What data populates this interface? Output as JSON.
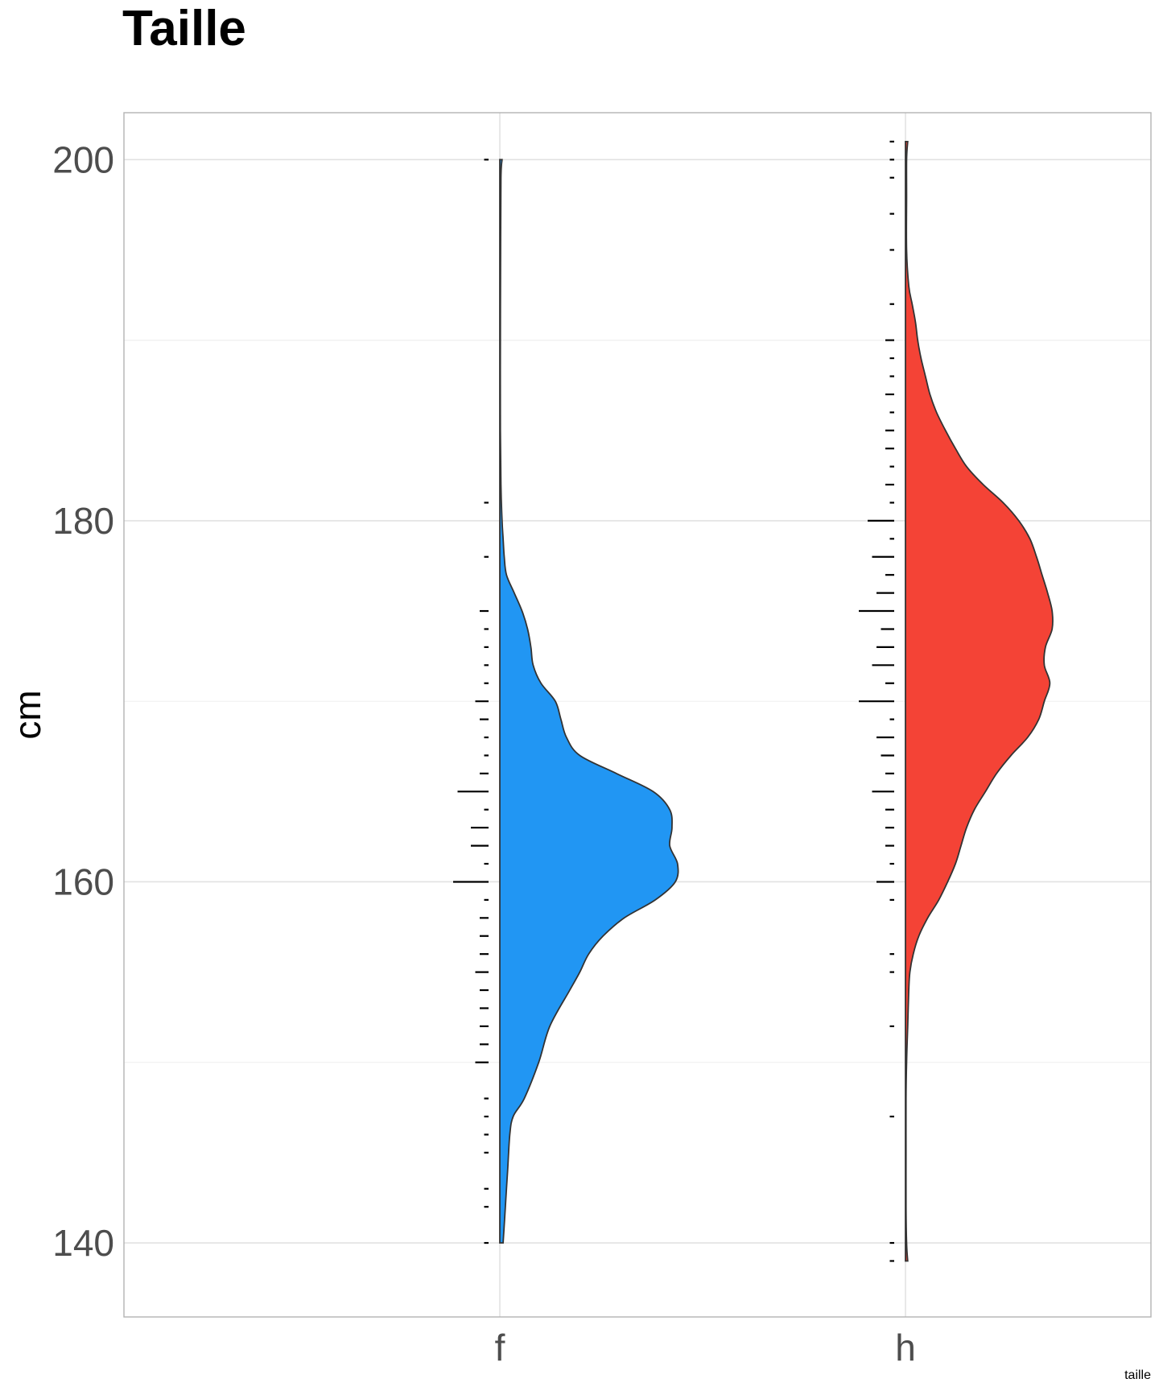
{
  "chart_data": {
    "type": "violin",
    "title": "Taille",
    "xlabel": "",
    "ylabel": "cm",
    "caption": "taille",
    "ylim": [
      135.9,
      202.6
    ],
    "yticks": [
      140,
      160,
      180,
      200
    ],
    "grid": true,
    "legend": "none",
    "categories": [
      "f",
      "h"
    ],
    "series": [
      {
        "category": "f",
        "color": "#2196F3",
        "density": [
          [
            140,
            0.03
          ],
          [
            142,
            0.05
          ],
          [
            144,
            0.07
          ],
          [
            146,
            0.09
          ],
          [
            147,
            0.12
          ],
          [
            148,
            0.22
          ],
          [
            150,
            0.35
          ],
          [
            152,
            0.45
          ],
          [
            154,
            0.63
          ],
          [
            155,
            0.72
          ],
          [
            156,
            0.8
          ],
          [
            157,
            0.93
          ],
          [
            158,
            1.12
          ],
          [
            159,
            1.4
          ],
          [
            160,
            1.58
          ],
          [
            161,
            1.6
          ],
          [
            162,
            1.53
          ],
          [
            163,
            1.55
          ],
          [
            164,
            1.53
          ],
          [
            165,
            1.38
          ],
          [
            166,
            1.05
          ],
          [
            167,
            0.72
          ],
          [
            168,
            0.6
          ],
          [
            169,
            0.55
          ],
          [
            170,
            0.5
          ],
          [
            171,
            0.37
          ],
          [
            172,
            0.3
          ],
          [
            173,
            0.28
          ],
          [
            174,
            0.25
          ],
          [
            175,
            0.2
          ],
          [
            176,
            0.13
          ],
          [
            177,
            0.06
          ],
          [
            178,
            0.04
          ],
          [
            179,
            0.03
          ],
          [
            180,
            0.02
          ],
          [
            182,
            0.01
          ],
          [
            185,
            0.005
          ],
          [
            190,
            0.005
          ],
          [
            195,
            0.007
          ],
          [
            199,
            0.01
          ],
          [
            200,
            0.02
          ]
        ],
        "rug": [
          [
            140,
            1
          ],
          [
            142,
            1
          ],
          [
            143,
            1
          ],
          [
            145,
            1
          ],
          [
            146,
            1
          ],
          [
            147,
            1
          ],
          [
            148,
            1
          ],
          [
            150,
            3
          ],
          [
            151,
            2
          ],
          [
            152,
            2
          ],
          [
            153,
            2
          ],
          [
            154,
            2
          ],
          [
            155,
            3
          ],
          [
            156,
            2
          ],
          [
            157,
            2
          ],
          [
            158,
            2
          ],
          [
            159,
            1
          ],
          [
            160,
            8
          ],
          [
            161,
            1
          ],
          [
            162,
            4
          ],
          [
            163,
            4
          ],
          [
            164,
            1
          ],
          [
            165,
            7
          ],
          [
            166,
            2
          ],
          [
            167,
            1
          ],
          [
            168,
            1
          ],
          [
            169,
            2
          ],
          [
            170,
            3
          ],
          [
            171,
            1
          ],
          [
            172,
            1
          ],
          [
            173,
            1
          ],
          [
            174,
            1
          ],
          [
            175,
            2
          ],
          [
            178,
            1
          ],
          [
            181,
            1
          ],
          [
            200,
            1
          ]
        ]
      },
      {
        "category": "h",
        "color": "#F44336",
        "density": [
          [
            139,
            0.02
          ],
          [
            140,
            0.01
          ],
          [
            142,
            0.005
          ],
          [
            145,
            0.005
          ],
          [
            148,
            0.005
          ],
          [
            150,
            0.01
          ],
          [
            152,
            0.02
          ],
          [
            154,
            0.03
          ],
          [
            155,
            0.04
          ],
          [
            156,
            0.07
          ],
          [
            157,
            0.12
          ],
          [
            158,
            0.2
          ],
          [
            159,
            0.3
          ],
          [
            160,
            0.38
          ],
          [
            161,
            0.45
          ],
          [
            162,
            0.5
          ],
          [
            163,
            0.55
          ],
          [
            164,
            0.62
          ],
          [
            165,
            0.72
          ],
          [
            166,
            0.82
          ],
          [
            167,
            0.95
          ],
          [
            168,
            1.1
          ],
          [
            169,
            1.2
          ],
          [
            170,
            1.25
          ],
          [
            171,
            1.3
          ],
          [
            172,
            1.25
          ],
          [
            173,
            1.26
          ],
          [
            174,
            1.32
          ],
          [
            175,
            1.32
          ],
          [
            176,
            1.28
          ],
          [
            177,
            1.23
          ],
          [
            178,
            1.18
          ],
          [
            179,
            1.12
          ],
          [
            180,
            1.02
          ],
          [
            181,
            0.88
          ],
          [
            182,
            0.7
          ],
          [
            183,
            0.55
          ],
          [
            184,
            0.45
          ],
          [
            185,
            0.36
          ],
          [
            186,
            0.28
          ],
          [
            187,
            0.22
          ],
          [
            188,
            0.18
          ],
          [
            189,
            0.14
          ],
          [
            190,
            0.11
          ],
          [
            191,
            0.09
          ],
          [
            192,
            0.06
          ],
          [
            193,
            0.03
          ],
          [
            195,
            0.01
          ],
          [
            198,
            0.01
          ],
          [
            200,
            0.01
          ],
          [
            201,
            0.02
          ]
        ],
        "rug": [
          [
            139,
            1
          ],
          [
            140,
            1
          ],
          [
            147,
            1
          ],
          [
            152,
            1
          ],
          [
            155,
            1
          ],
          [
            156,
            1
          ],
          [
            159,
            1
          ],
          [
            160,
            4
          ],
          [
            161,
            1
          ],
          [
            162,
            2
          ],
          [
            163,
            2
          ],
          [
            164,
            2
          ],
          [
            165,
            5
          ],
          [
            166,
            2
          ],
          [
            167,
            3
          ],
          [
            168,
            4
          ],
          [
            169,
            1
          ],
          [
            170,
            8
          ],
          [
            171,
            2
          ],
          [
            172,
            5
          ],
          [
            173,
            4
          ],
          [
            174,
            3
          ],
          [
            175,
            8
          ],
          [
            176,
            4
          ],
          [
            177,
            2
          ],
          [
            178,
            5
          ],
          [
            179,
            1
          ],
          [
            180,
            6
          ],
          [
            181,
            1
          ],
          [
            182,
            2
          ],
          [
            183,
            1
          ],
          [
            184,
            2
          ],
          [
            185,
            2
          ],
          [
            186,
            1
          ],
          [
            187,
            2
          ],
          [
            188,
            1
          ],
          [
            189,
            1
          ],
          [
            190,
            2
          ],
          [
            192,
            1
          ],
          [
            195,
            1
          ],
          [
            197,
            1
          ],
          [
            199,
            1
          ],
          [
            200,
            1
          ],
          [
            201,
            1
          ]
        ]
      }
    ]
  }
}
